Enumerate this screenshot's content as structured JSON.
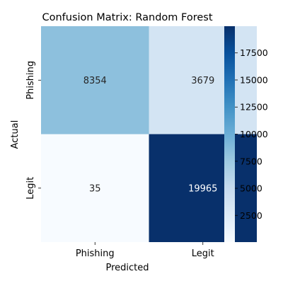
{
  "chart_data": {
    "type": "heatmap",
    "title": "Confusion Matrix: Random Forest",
    "xlabel": "Predicted",
    "ylabel": "Actual",
    "x_categories": [
      "Phishing",
      "Legit"
    ],
    "y_categories": [
      "Phishing",
      "Legit"
    ],
    "values": [
      [
        8354,
        3679
      ],
      [
        35,
        19965
      ]
    ],
    "colormap": "Blues",
    "color_range": [
      35,
      19965
    ],
    "colorbar_ticks": [
      2500,
      5000,
      7500,
      10000,
      12500,
      15000,
      17500
    ],
    "colormap_colors": [
      "#f7fbff",
      "#deebf7",
      "#c6dbef",
      "#9ecae1",
      "#6baed6",
      "#4292c6",
      "#2171b5",
      "#08519c",
      "#08306b"
    ]
  }
}
